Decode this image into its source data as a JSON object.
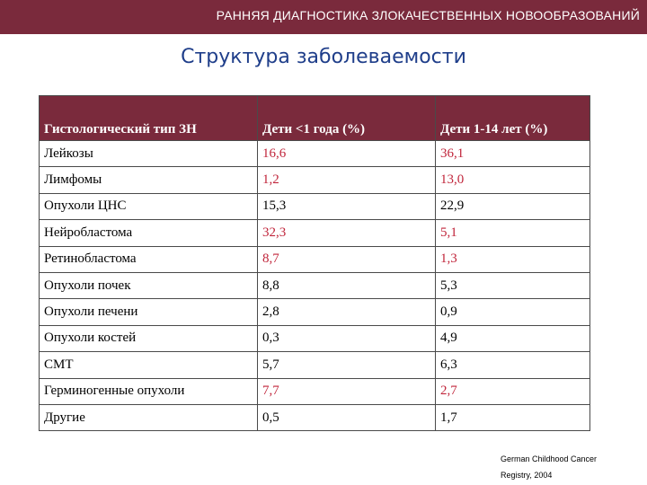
{
  "banner": {
    "title": "РАННЯЯ ДИАГНОСТИКА ЗЛОКАЧЕСТВЕННЫХ НОВООБРАЗОВАНИЙ"
  },
  "slide": {
    "title": "Структура заболеваемости"
  },
  "colors": {
    "accent": "#7a2a3c",
    "title": "#1f3e8a",
    "highlight": "#c0243a"
  },
  "table": {
    "headers": [
      "Гистологический тип ЗН",
      "Дети <1 года (%)",
      "Дети 1-14 лет (%)"
    ],
    "rows": [
      {
        "type": "Лейкозы",
        "under1": "16,6",
        "age1to14": "36,1"
      },
      {
        "type": "Лимфомы",
        "under1": "1,2",
        "age1to14": "13,0"
      },
      {
        "type": "Опухоли ЦНС",
        "under1": "15,3",
        "age1to14": "22,9"
      },
      {
        "type": "Нейробластома",
        "under1": "32,3",
        "age1to14": "5,1"
      },
      {
        "type": "Ретинобластома",
        "under1": "8,7",
        "age1to14": "1,3"
      },
      {
        "type": "Опухоли почек",
        "under1": "8,8",
        "age1to14": "5,3"
      },
      {
        "type": "Опухоли печени",
        "under1": "2,8",
        "age1to14": "0,9"
      },
      {
        "type": "Опухоли костей",
        "under1": "0,3",
        "age1to14": "4,9"
      },
      {
        "type": "СМТ",
        "under1": "5,7",
        "age1to14": "6,3"
      },
      {
        "type": "Герминогенные опухоли",
        "under1": "7,7",
        "age1to14": "2,7"
      },
      {
        "type": "Другие",
        "under1": "0,5",
        "age1to14": "1,7"
      }
    ]
  },
  "source": {
    "line1": "German Childhood Cancer",
    "line2": "Registry, 2004"
  }
}
